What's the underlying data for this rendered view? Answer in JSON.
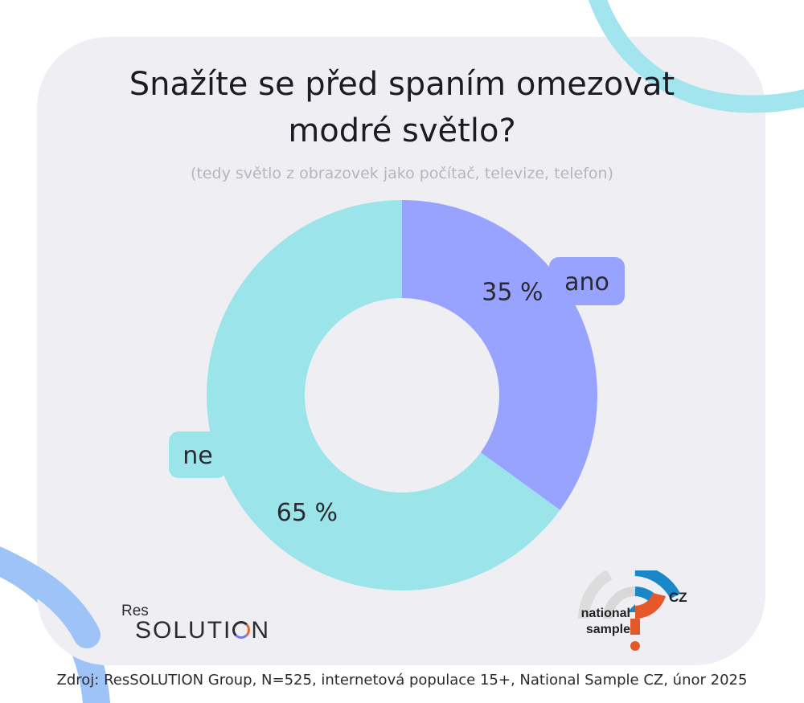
{
  "chart_data": {
    "type": "pie",
    "title": [
      "Snažíte se před spaním omezovat",
      "modré světlo?"
    ],
    "subtitle": "(tedy světlo z obrazovek jako počítač, televize, telefon)",
    "categories": [
      "ano",
      "ne"
    ],
    "values": [
      35,
      65
    ],
    "value_labels": [
      "35 %",
      "65 %"
    ],
    "colors": [
      "#98a2ff",
      "#9be5ea"
    ],
    "donut": true,
    "legend": "none"
  },
  "branding": {
    "res_word": "Res",
    "solution_parts": [
      "SOLUTI",
      "N"
    ],
    "ns_line1": "national",
    "ns_line2": "sample",
    "ns_country": "CZ"
  },
  "source": "Zdroj: ResSOLUTION Group, N=525, internetová populace 15+, National Sample CZ, únor 2025"
}
